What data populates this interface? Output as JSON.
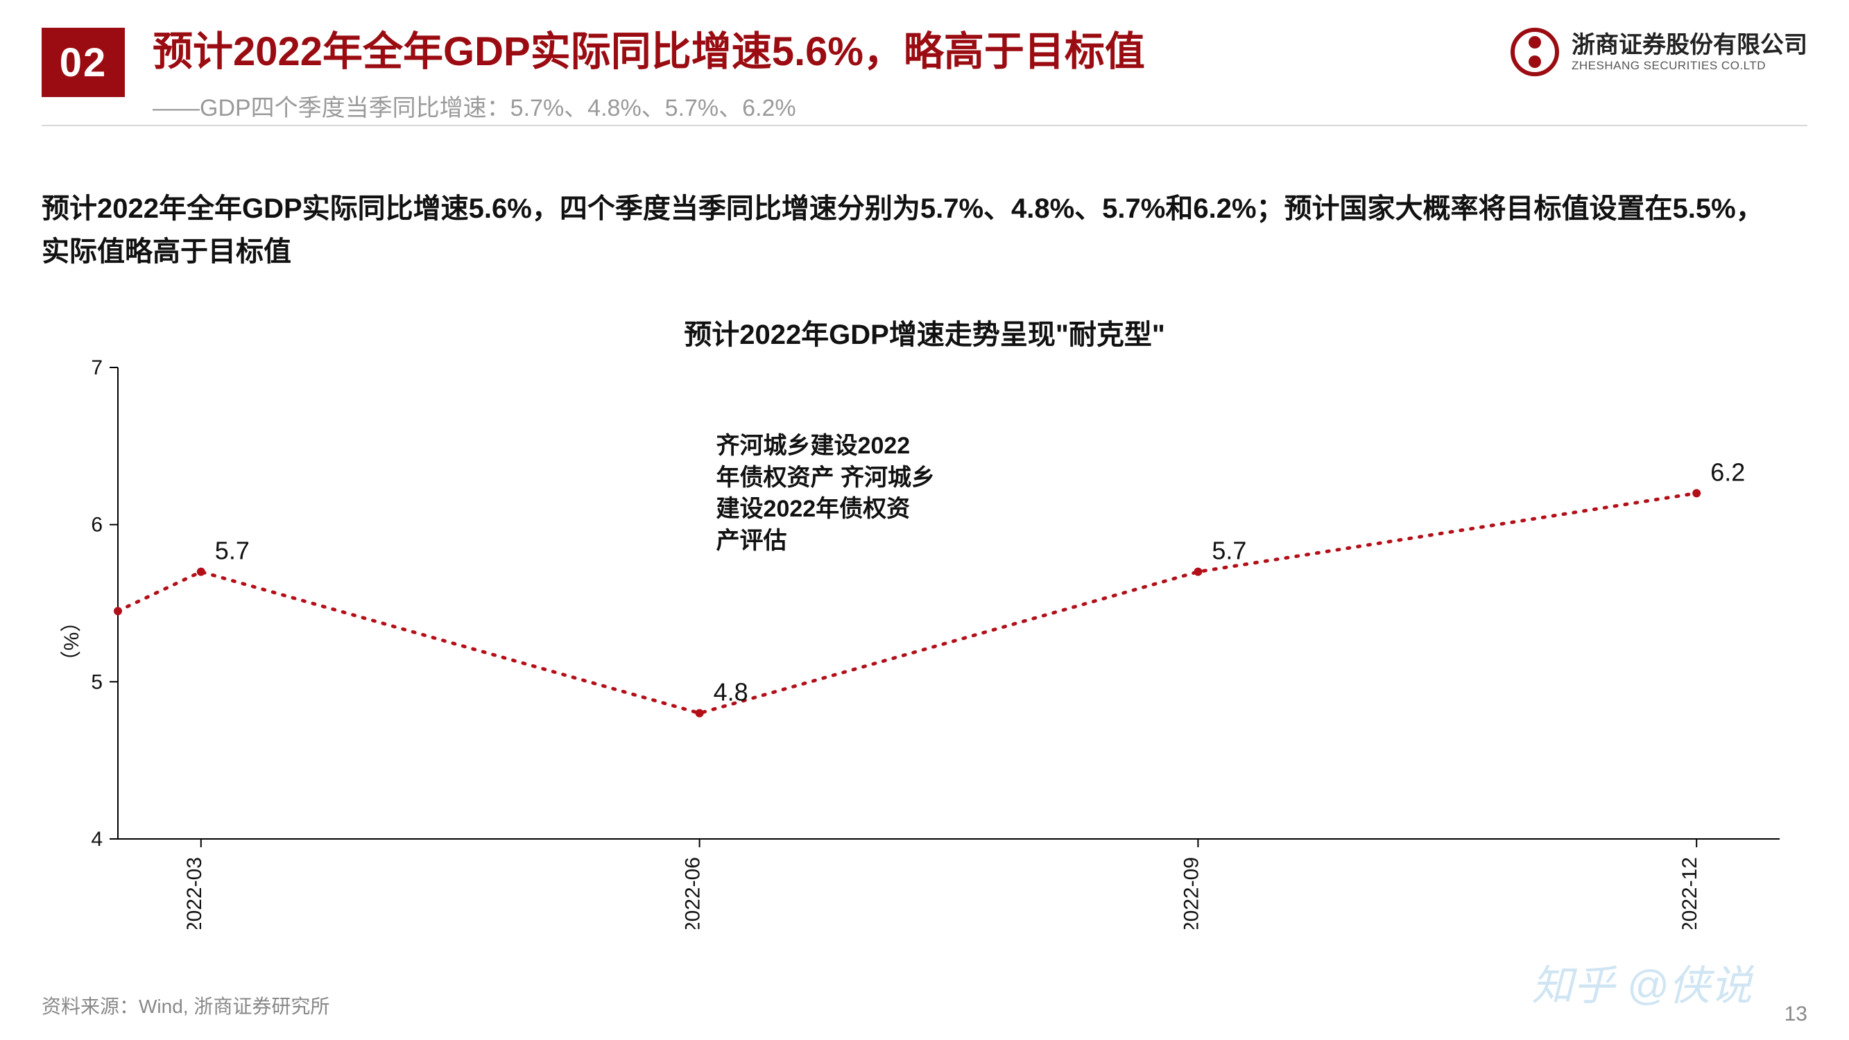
{
  "header": {
    "section_number": "02",
    "title": "预计2022年全年GDP实际同比增速5.6%，略高于目标值",
    "subtitle": "——GDP四个季度当季同比增速：5.7%、4.8%、5.7%、6.2%",
    "logo_cn": "浙商证券股份有限公司",
    "logo_en": "ZHESHANG SECURITIES CO.LTD"
  },
  "body_text": "预计2022年全年GDP实际同比增速5.6%，四个季度当季同比增速分别为5.7%、4.8%、5.7%和6.2%；预计国家大概率将目标值设置在5.5%，实际值略高于目标值",
  "chart": {
    "title": "预计2022年GDP增速走势呈现\"耐克型\"",
    "type": "line",
    "ylabel": "（%）",
    "ylim": [
      4,
      7
    ],
    "yticks": [
      4,
      5,
      6,
      7
    ],
    "xticks": [
      "2022-03",
      "2022-06",
      "2022-09",
      "2022-12"
    ],
    "x_positions": [
      0.5,
      3.5,
      6.5,
      9.5
    ],
    "x_domain": [
      0,
      10
    ],
    "series": {
      "color": "#b30f18",
      "marker_color": "#b30f18",
      "marker_size": 6,
      "dotted": true,
      "line_width": 5,
      "points": [
        {
          "x": 0,
          "y": 5.45,
          "label": ""
        },
        {
          "x": 0.5,
          "y": 5.7,
          "label": "5.7"
        },
        {
          "x": 3.5,
          "y": 4.8,
          "label": "4.8"
        },
        {
          "x": 6.5,
          "y": 5.7,
          "label": "5.7"
        },
        {
          "x": 9.5,
          "y": 6.2,
          "label": "6.2"
        }
      ]
    },
    "annotation_text": "齐河城乡建设2022\n年债权资产 齐河城乡\n建设2022年债权资\n产评估",
    "axis_color": "#000000",
    "tick_color": "#000000",
    "tick_font_size": 30,
    "data_label_font_size": 36,
    "background_color": "#ffffff"
  },
  "source": "资料来源：Wind, 浙商证券研究所",
  "page_number": "13",
  "watermark": "知乎 @侠说",
  "colors": {
    "brand_red": "#9a0c12",
    "text_dark": "#111111",
    "text_gray": "#9a9a9a",
    "divider": "#d8d8d8"
  }
}
